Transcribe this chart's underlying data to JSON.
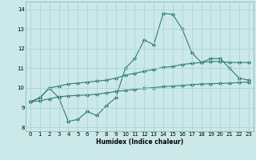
{
  "title": "",
  "xlabel": "Humidex (Indice chaleur)",
  "xlim": [
    -0.5,
    23.5
  ],
  "ylim": [
    7.8,
    14.4
  ],
  "yticks": [
    8,
    9,
    10,
    11,
    12,
    13,
    14
  ],
  "xticks": [
    0,
    1,
    2,
    3,
    4,
    5,
    6,
    7,
    8,
    9,
    10,
    11,
    12,
    13,
    14,
    15,
    16,
    17,
    18,
    19,
    20,
    21,
    22,
    23
  ],
  "bg_color": "#cce9e9",
  "grid_color": "#aad4d4",
  "line_color": "#2e7d6e",
  "series1_x": [
    0,
    1,
    2,
    3,
    4,
    5,
    6,
    7,
    8,
    9,
    10,
    11,
    12,
    13,
    14,
    15,
    16,
    17,
    18,
    19,
    20,
    21,
    22,
    23
  ],
  "series1_y": [
    9.3,
    9.5,
    10.0,
    9.5,
    8.3,
    8.4,
    8.8,
    8.6,
    9.1,
    9.5,
    11.0,
    11.5,
    12.45,
    12.2,
    13.8,
    13.75,
    13.0,
    11.8,
    11.3,
    11.5,
    11.5,
    11.0,
    10.5,
    10.4
  ],
  "series2_x": [
    0,
    1,
    2,
    3,
    4,
    5,
    6,
    7,
    8,
    9,
    10,
    11,
    12,
    13,
    14,
    15,
    16,
    17,
    18,
    19,
    20,
    21,
    22,
    23
  ],
  "series2_y": [
    9.3,
    9.5,
    10.0,
    10.1,
    10.2,
    10.25,
    10.3,
    10.35,
    10.4,
    10.5,
    10.65,
    10.75,
    10.85,
    10.95,
    11.05,
    11.1,
    11.2,
    11.25,
    11.3,
    11.35,
    11.35,
    11.3,
    11.3,
    11.3
  ],
  "series3_x": [
    0,
    1,
    2,
    3,
    4,
    5,
    6,
    7,
    8,
    9,
    10,
    11,
    12,
    13,
    14,
    15,
    16,
    17,
    18,
    19,
    20,
    21,
    22,
    23
  ],
  "series3_y": [
    9.3,
    9.35,
    9.45,
    9.55,
    9.6,
    9.62,
    9.65,
    9.68,
    9.75,
    9.82,
    9.88,
    9.93,
    9.98,
    10.02,
    10.07,
    10.1,
    10.13,
    10.17,
    10.2,
    10.22,
    10.23,
    10.25,
    10.28,
    10.3
  ]
}
